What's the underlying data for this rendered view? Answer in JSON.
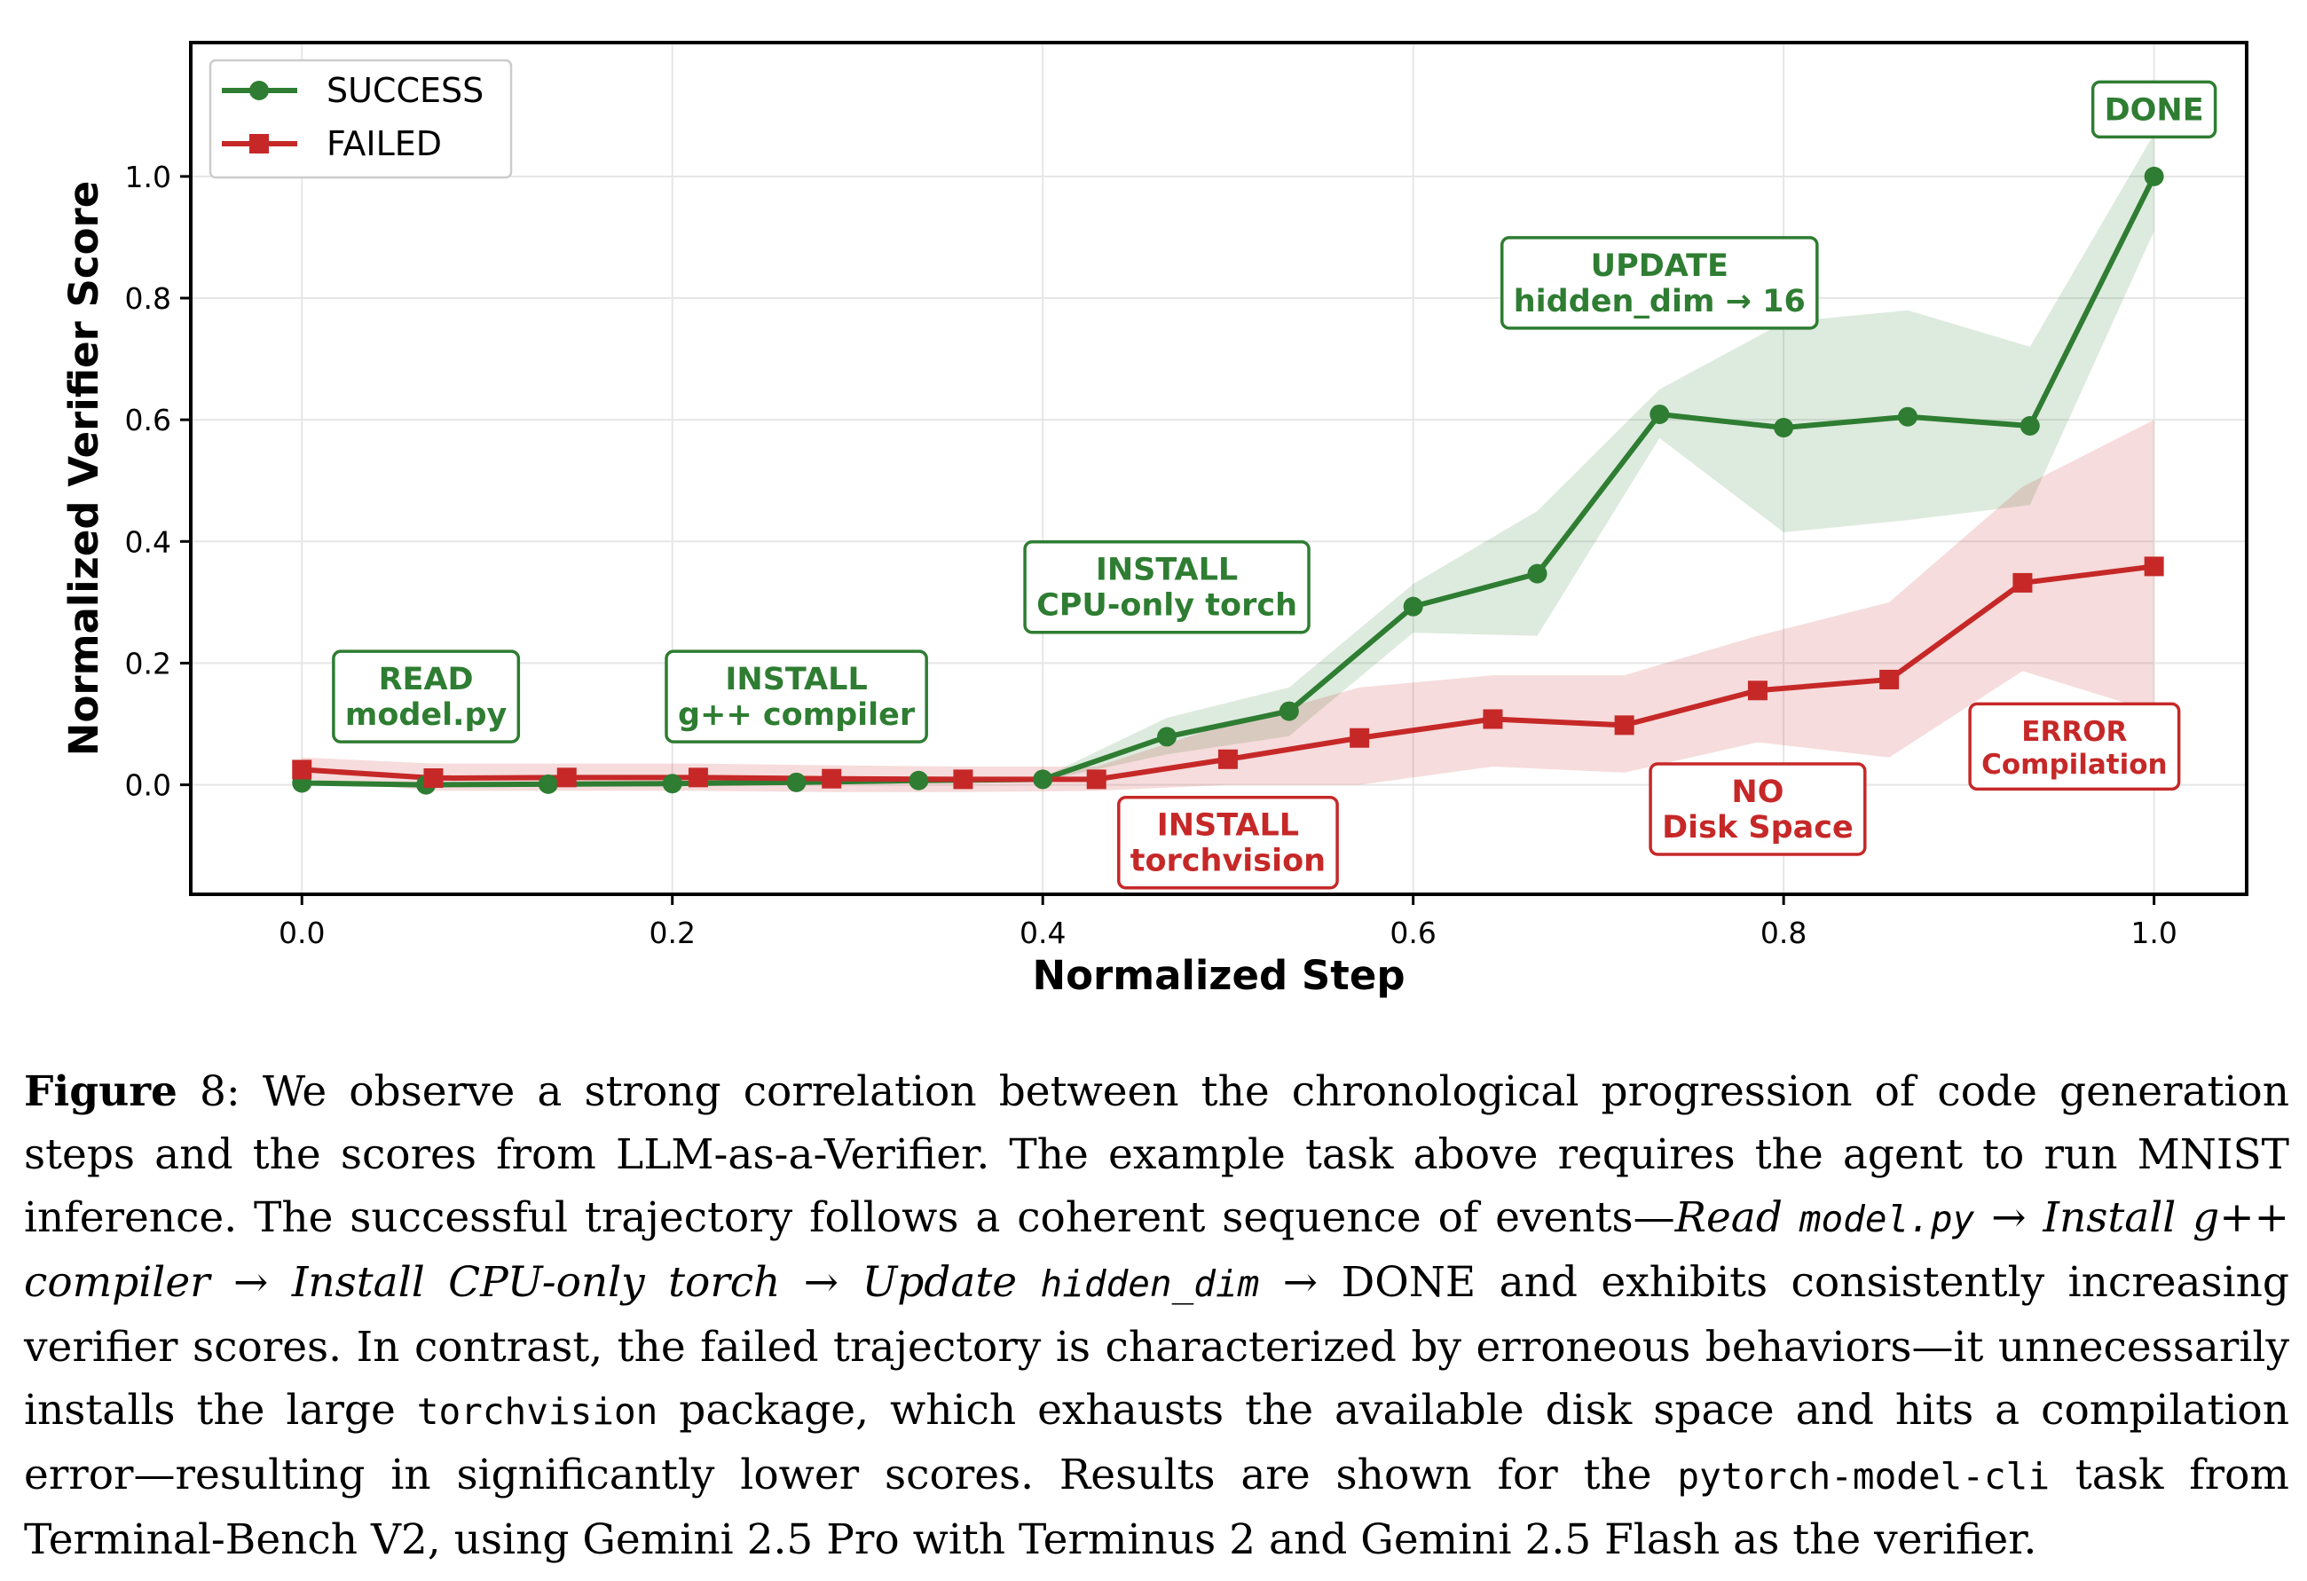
{
  "chart_data": {
    "type": "line",
    "xlabel": "Normalized Step",
    "ylabel": "Normalized Verifier Score",
    "xlim": [
      -0.06,
      1.05
    ],
    "ylim": [
      -0.18,
      1.22
    ],
    "xticks": [
      "0.0",
      "0.2",
      "0.4",
      "0.6",
      "0.8",
      "1.0"
    ],
    "yticks": [
      "0.0",
      "0.2",
      "0.4",
      "0.6",
      "0.8",
      "1.0"
    ],
    "grid": true,
    "legend_position": "upper-left",
    "series": [
      {
        "name": "SUCCESS",
        "color": "#2e7d32",
        "marker": "circle",
        "x": [
          0.0,
          0.067,
          0.133,
          0.2,
          0.267,
          0.333,
          0.4,
          0.467,
          0.533,
          0.6,
          0.667,
          0.733,
          0.8,
          0.867,
          0.933,
          1.0
        ],
        "y": [
          0.003,
          0.0,
          0.001,
          0.002,
          0.004,
          0.007,
          0.009,
          0.079,
          0.121,
          0.293,
          0.347,
          0.609,
          0.587,
          0.605,
          0.59,
          1.0
        ],
        "upper": [
          0.005,
          0.003,
          0.004,
          0.004,
          0.007,
          0.01,
          0.012,
          0.11,
          0.16,
          0.33,
          0.45,
          0.65,
          0.76,
          0.78,
          0.72,
          1.07
        ],
        "lower": [
          0.001,
          -0.002,
          -0.001,
          0.0,
          0.001,
          0.003,
          0.006,
          0.05,
          0.08,
          0.25,
          0.245,
          0.57,
          0.415,
          0.435,
          0.46,
          0.91
        ]
      },
      {
        "name": "FAILED",
        "color": "#c62828",
        "marker": "square",
        "x": [
          0.0,
          0.071,
          0.143,
          0.214,
          0.286,
          0.357,
          0.429,
          0.5,
          0.571,
          0.643,
          0.714,
          0.786,
          0.857,
          0.929,
          1.0
        ],
        "y": [
          0.025,
          0.011,
          0.012,
          0.012,
          0.01,
          0.009,
          0.009,
          0.042,
          0.077,
          0.108,
          0.098,
          0.155,
          0.173,
          0.332,
          0.359
        ],
        "upper": [
          0.045,
          0.035,
          0.035,
          0.035,
          0.032,
          0.03,
          0.03,
          0.1,
          0.16,
          0.18,
          0.18,
          0.245,
          0.3,
          0.49,
          0.6
        ],
        "lower": [
          0.01,
          -0.01,
          -0.01,
          -0.01,
          -0.012,
          -0.012,
          -0.01,
          0.0,
          0.0,
          0.03,
          0.02,
          0.07,
          0.045,
          0.187,
          0.12
        ]
      }
    ],
    "annotations": [
      {
        "id": "read",
        "lines": [
          "READ",
          "model.py"
        ],
        "color": "#2e7d32",
        "x": 0.067,
        "y": 0.145
      },
      {
        "id": "gpp",
        "lines": [
          "INSTALL",
          "g++ compiler"
        ],
        "color": "#2e7d32",
        "x": 0.267,
        "y": 0.145
      },
      {
        "id": "cpu",
        "lines": [
          "INSTALL",
          "CPU-only torch"
        ],
        "color": "#2e7d32",
        "x": 0.467,
        "y": 0.325
      },
      {
        "id": "update",
        "lines": [
          "UPDATE",
          "hidden_dim → 16"
        ],
        "color": "#2e7d32",
        "x": 0.733,
        "y": 0.825
      },
      {
        "id": "done",
        "lines": [
          "DONE"
        ],
        "color": "#2e7d32",
        "x": 1.0,
        "y": 1.11
      },
      {
        "id": "torchvision",
        "lines": [
          "INSTALL",
          "torchvision"
        ],
        "color": "#c62828",
        "x": 0.5,
        "y": -0.095
      },
      {
        "id": "nodisk",
        "lines": [
          "NO",
          "Disk Space"
        ],
        "color": "#c62828",
        "x": 0.786,
        "y": -0.04
      },
      {
        "id": "error",
        "lines": [
          "ERROR",
          "Compilation"
        ],
        "color": "#c62828",
        "x": 0.957,
        "y": 0.063
      }
    ]
  },
  "caption": {
    "label": "Figure",
    "number": "8:",
    "t1": " We observe a strong correlation between the chronological progression of code generation steps and the scores from LLM-as-a-Verifier. The example task above requires the agent to run MNIST inference. The successful trajectory follows a coherent sequence of events—",
    "read": "Read ",
    "model_py": "model.py",
    "arrow1": " → ",
    "install_gpp": "Install g++ compiler",
    "arrow2": " → ",
    "install_cpu": "Install CPU-only torch",
    "arrow3": " → ",
    "update": "Update ",
    "hidden_dim": "hidden_dim",
    "arrow4": " → ",
    "t2": "DONE and exhibits consistently increasing verifier scores. In contrast, the failed trajectory is characterized by erroneous behaviors—it unnecessarily installs the large ",
    "torchvision": "torchvision",
    "t3": " package, which exhausts the available disk space and hits a compilation error—resulting in significantly lower scores. Results are shown for the ",
    "task": "pytorch-model-cli",
    "t4": " task from Terminal-Bench V2, using Gemini 2.5 Pro with Terminus 2 and Gemini 2.5 Flash as the verifier."
  }
}
